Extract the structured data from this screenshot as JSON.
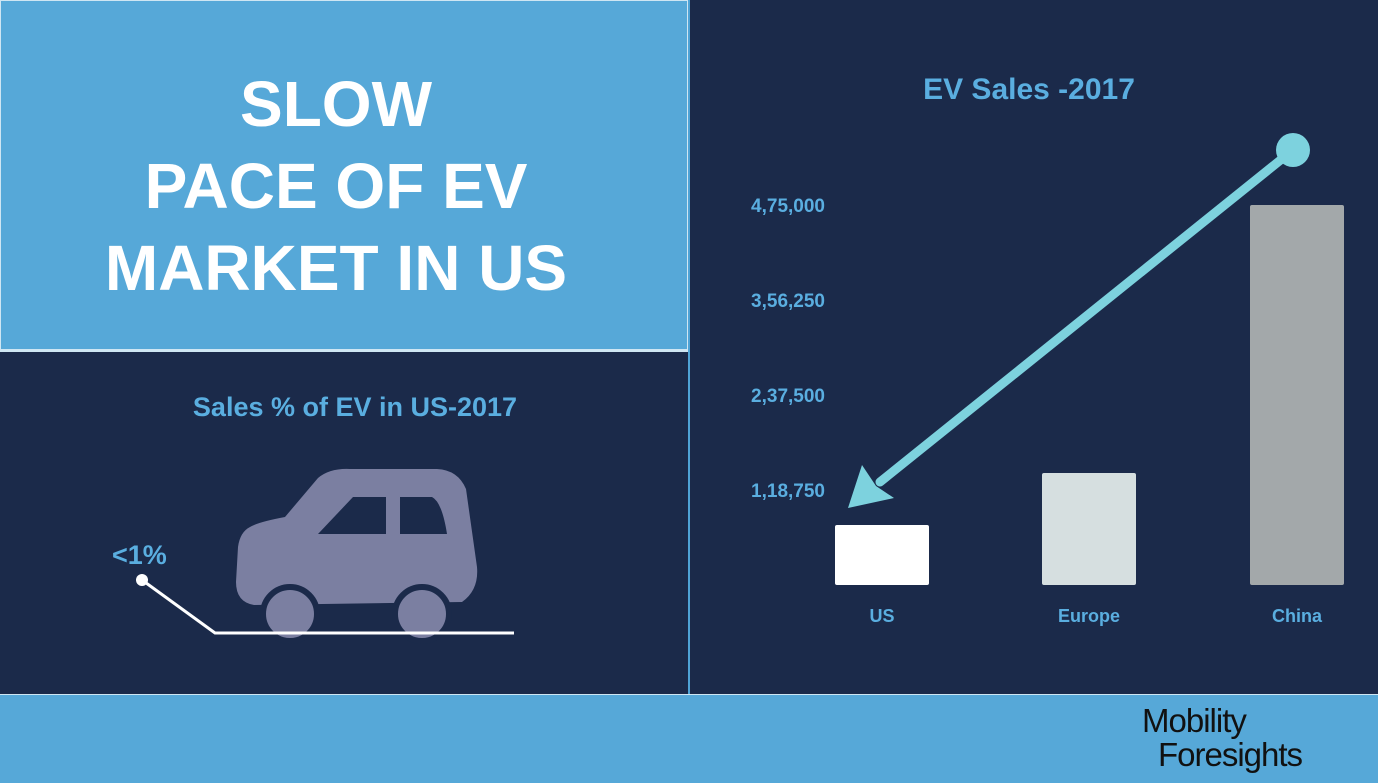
{
  "title": {
    "text": "SLOW\nPACE OF EV\nMARKET IN US"
  },
  "left_panel": {
    "title": "Sales % of EV in US-2017",
    "percent_label": "<1%"
  },
  "logo": {
    "line1": "Mobility",
    "line2": "Foresights"
  },
  "colors": {
    "light_blue": "#56a8d8",
    "navy": "#1b2a4a",
    "label_blue": "#5aaee0",
    "arrow": "#7dd2de",
    "car": "#7b7fa1"
  },
  "chart_data": {
    "type": "bar",
    "title": "EV Sales -2017",
    "categories": [
      "US",
      "Europe",
      "China"
    ],
    "values": [
      75000,
      140000,
      475000
    ],
    "bar_colors": [
      "#ffffff",
      "#d6dfe0",
      "#a3a8aa"
    ],
    "y_ticks": [
      118750,
      237500,
      356250,
      475000
    ],
    "y_tick_labels": [
      "1,18,750",
      "2,37,500",
      "3,56,250",
      "4,75,000"
    ],
    "ylim": [
      0,
      475000
    ],
    "xlabel": "",
    "ylabel": "",
    "grid": false,
    "annotation": "arrow pointing from above China bar down to US bar"
  }
}
